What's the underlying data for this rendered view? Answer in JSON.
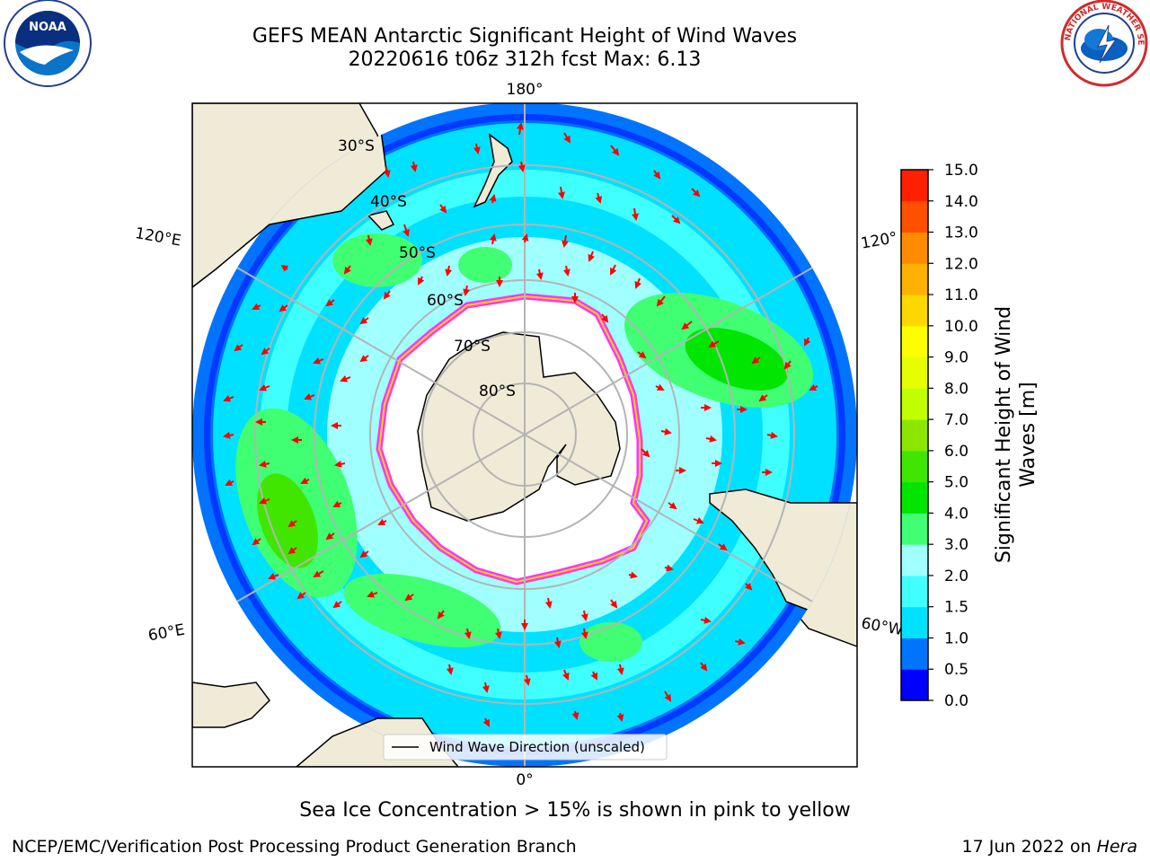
{
  "title_line1": "GEFS MEAN Antarctic Significant Height of Wind Waves",
  "title_line2": "20220616 t06z 312h fcst   Max: 6.13",
  "caption": "Sea Ice Concentration > 15% is shown in pink to yellow",
  "footer_left": "NCEP/EMC/Verification Post Processing Product Generation Branch",
  "footer_right_date": "17 Jun 2022 on ",
  "footer_right_host": "Hera",
  "logos": {
    "left": "noaa-logo",
    "right": "nws-logo",
    "left_text": "NOAA",
    "right_text": "NATIONAL WEATHER SERVICE"
  },
  "map": {
    "projection": "south-polar-stereographic",
    "lon_labels": {
      "top": "180°",
      "bottom": "0°",
      "upper_left": "120°E",
      "upper_right": "120°",
      "lower_left": "60°E",
      "lower_right": "60°W"
    },
    "lat_labels": [
      "30°S",
      "40°S",
      "50°S",
      "60°S",
      "70°S",
      "80°S"
    ],
    "legend_label": "Wind Wave Direction (unscaled)",
    "colors": {
      "land": "#efebd7",
      "ocean_low": "#00ffff",
      "ice": "#ffffff",
      "ice_edge": "#ff33ff",
      "arrow": "#ff0000",
      "grid": "#b4b4b4"
    }
  },
  "colorbar": {
    "label_line1": "Significant Height of Wind",
    "label_line2": "Waves [m]",
    "ticks": [
      "0.0",
      "0.5",
      "1.0",
      "1.5",
      "2.0",
      "3.0",
      "4.0",
      "5.0",
      "6.0",
      "7.0",
      "8.0",
      "9.0",
      "10.0",
      "11.0",
      "12.0",
      "13.0",
      "14.0",
      "15.0"
    ],
    "colors": [
      "#0000ff",
      "#0073ff",
      "#00e1ff",
      "#40ffff",
      "#a0ffff",
      "#40ff73",
      "#00e600",
      "#40e600",
      "#8ce600",
      "#bfff00",
      "#e6ff00",
      "#ffff00",
      "#ffd700",
      "#ffb000",
      "#ff8c00",
      "#ff5000",
      "#ff2000"
    ]
  },
  "chart_data": {
    "type": "heatmap",
    "title": "GEFS MEAN Antarctic Significant Height of Wind Waves",
    "subtitle": "20220616 t06z 312h fcst   Max: 6.13",
    "colorbar_range": [
      0.0,
      15.0
    ],
    "max_value": 6.13,
    "units": "m"
  }
}
